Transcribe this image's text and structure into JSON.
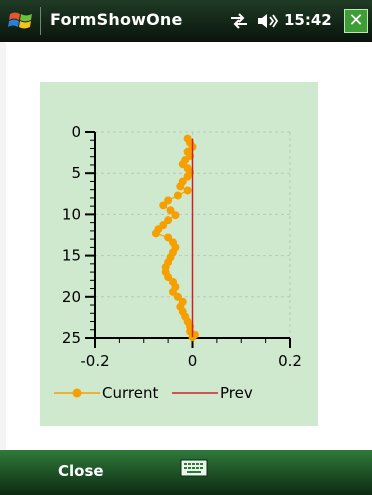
{
  "titlebar": {
    "app_title": "FormShowOne",
    "clock": "15:42",
    "close_glyph": "✕",
    "icons": [
      "windows-start-icon",
      "connectivity-icon",
      "volume-icon",
      "close-icon"
    ]
  },
  "softkeys": {
    "left_label": "Close",
    "center_icon": "keyboard-icon"
  },
  "chart_data": {
    "type": "line",
    "orientation": "vertical-depth",
    "xlim": [
      -0.2,
      0.2
    ],
    "ylim": [
      0,
      25
    ],
    "y_inverted": true,
    "x_ticks": [
      "-0.2",
      "0",
      "0.2"
    ],
    "y_ticks": [
      "0",
      "5",
      "10",
      "15",
      "20",
      "25"
    ],
    "grid": true,
    "legend_position": "bottom",
    "series": [
      {
        "name": "Current",
        "color": "#f5a000",
        "marker": "circle",
        "points": [
          [
            -0.01,
            0.8
          ],
          [
            -0.005,
            1.3
          ],
          [
            0.0,
            1.8
          ],
          [
            -0.01,
            2.4
          ],
          [
            -0.005,
            2.9
          ],
          [
            -0.015,
            3.4
          ],
          [
            -0.02,
            3.9
          ],
          [
            -0.01,
            4.4
          ],
          [
            -0.005,
            4.9
          ],
          [
            -0.01,
            5.4
          ],
          [
            -0.02,
            6.0
          ],
          [
            -0.025,
            6.6
          ],
          [
            -0.01,
            7.1
          ],
          [
            -0.03,
            7.7
          ],
          [
            -0.05,
            8.3
          ],
          [
            -0.06,
            8.9
          ],
          [
            -0.045,
            9.5
          ],
          [
            -0.035,
            10.1
          ],
          [
            -0.05,
            10.7
          ],
          [
            -0.06,
            11.3
          ],
          [
            -0.07,
            11.8
          ],
          [
            -0.075,
            12.3
          ],
          [
            -0.05,
            12.8
          ],
          [
            -0.04,
            13.4
          ],
          [
            -0.035,
            14.0
          ],
          [
            -0.04,
            14.6
          ],
          [
            -0.045,
            15.2
          ],
          [
            -0.05,
            15.8
          ],
          [
            -0.055,
            16.4
          ],
          [
            -0.055,
            17.0
          ],
          [
            -0.05,
            17.6
          ],
          [
            -0.04,
            18.2
          ],
          [
            -0.035,
            18.8
          ],
          [
            -0.04,
            19.4
          ],
          [
            -0.03,
            20.0
          ],
          [
            -0.02,
            20.6
          ],
          [
            -0.025,
            21.2
          ],
          [
            -0.02,
            21.8
          ],
          [
            -0.015,
            22.4
          ],
          [
            -0.01,
            23.0
          ],
          [
            -0.005,
            23.6
          ],
          [
            -0.005,
            24.2
          ],
          [
            0.005,
            24.6
          ],
          [
            0.0,
            24.9
          ]
        ]
      },
      {
        "name": "Prev",
        "color": "#d0202a",
        "marker": "none",
        "points": [
          [
            0.0,
            0.8
          ],
          [
            0.0,
            24.9
          ]
        ]
      }
    ]
  }
}
